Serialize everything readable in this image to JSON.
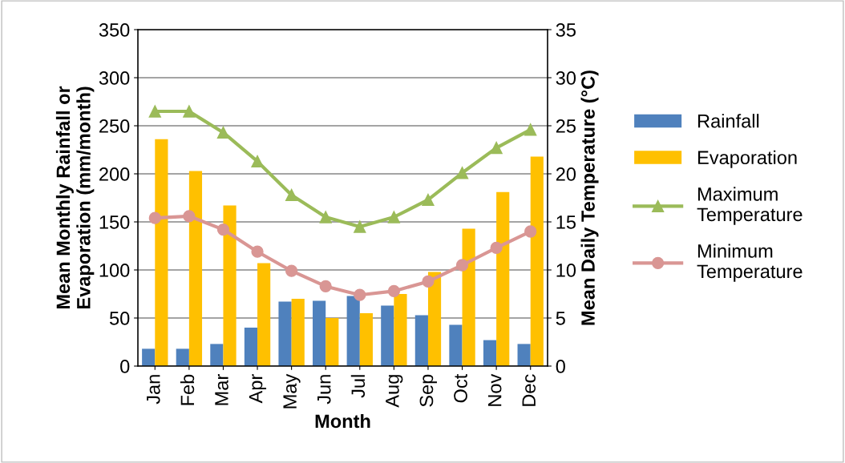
{
  "chart_data": {
    "type": "bar",
    "xlabel": "Month",
    "ylabel": "Mean Monthly Rainfall or Evaporation (mm/month)",
    "y2label": "Mean Daily Temperature (°C)",
    "categories": [
      "Jan",
      "Feb",
      "Mar",
      "Apr",
      "May",
      "Jun",
      "Jul",
      "Aug",
      "Sep",
      "Oct",
      "Nov",
      "Dec"
    ],
    "series": [
      {
        "name": "Rainfall",
        "color": "#4f81bd",
        "values": [
          18,
          18,
          23,
          40,
          67,
          68,
          73,
          63,
          53,
          43,
          27,
          23
        ]
      },
      {
        "name": "Evaporation",
        "color": "#ffc000",
        "values": [
          236,
          203,
          167,
          107,
          70,
          50,
          55,
          75,
          98,
          143,
          181,
          218
        ]
      },
      {
        "name": "Maximum Temperature",
        "type": "line",
        "axis": "y2",
        "marker": "triangle",
        "color": "#9bbb59",
        "values": [
          26.5,
          26.5,
          24.3,
          21.3,
          17.8,
          15.5,
          14.5,
          15.5,
          17.3,
          20.1,
          22.7,
          24.6
        ]
      },
      {
        "name": "Minimum Temperature",
        "type": "line",
        "axis": "y2",
        "marker": "circle",
        "color": "#d99694",
        "values": [
          15.4,
          15.6,
          14.2,
          11.9,
          9.9,
          8.3,
          7.4,
          7.8,
          8.8,
          10.5,
          12.3,
          14.0
        ]
      }
    ],
    "ylim": [
      0,
      350
    ],
    "yticks": [
      0,
      50,
      100,
      150,
      200,
      250,
      300,
      350
    ],
    "y2lim": [
      0,
      35
    ],
    "y2ticks": [
      0,
      5,
      10,
      15,
      20,
      25,
      30,
      35
    ],
    "grid": "y",
    "legend": "right"
  }
}
